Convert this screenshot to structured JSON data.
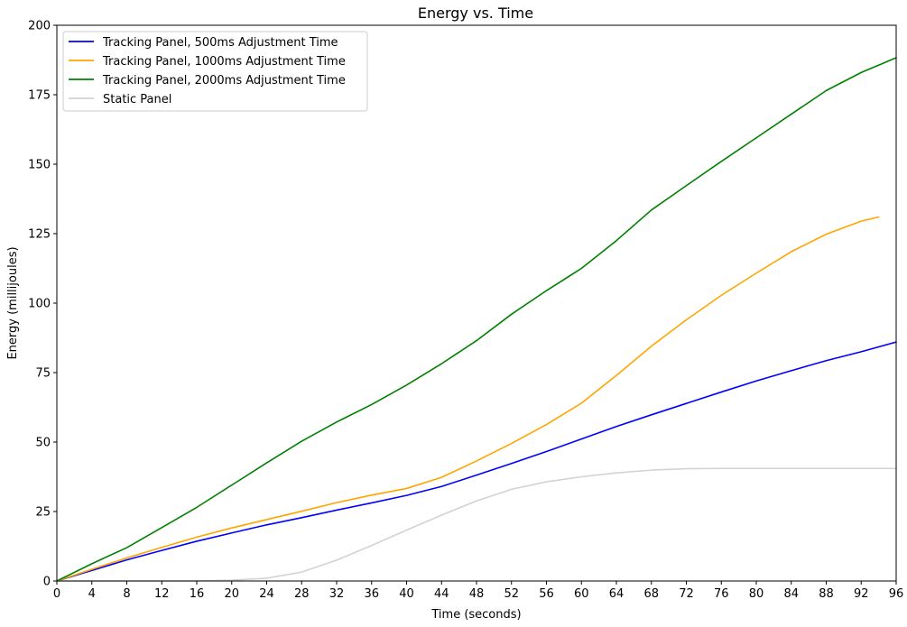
{
  "chart_data": {
    "type": "line",
    "title": "Energy vs. Time",
    "xlabel": "Time (seconds)",
    "ylabel": "Energy (millijoules)",
    "xlim": [
      0,
      96
    ],
    "ylim": [
      0,
      200
    ],
    "xticks": [
      0,
      4,
      8,
      12,
      16,
      20,
      24,
      28,
      32,
      36,
      40,
      44,
      48,
      52,
      56,
      60,
      64,
      68,
      72,
      76,
      80,
      84,
      88,
      92,
      96
    ],
    "yticks": [
      0,
      25,
      50,
      75,
      100,
      125,
      150,
      175,
      200
    ],
    "grid": false,
    "legend_position": "top-left",
    "series": [
      {
        "name": "Tracking Panel, 500ms Adjustment Time",
        "color": "#0000ff",
        "x": [
          0,
          4,
          8,
          12,
          16,
          20,
          24,
          28,
          32,
          36,
          40,
          44,
          48,
          52,
          56,
          60,
          64,
          68,
          72,
          76,
          80,
          84,
          88,
          92,
          96
        ],
        "y": [
          0,
          3.8,
          7.6,
          11,
          14.3,
          17.3,
          20.2,
          22.8,
          25.5,
          28.1,
          30.8,
          34,
          38.1,
          42.3,
          46.6,
          51.1,
          55.6,
          59.8,
          63.9,
          68,
          72,
          75.7,
          79.3,
          82.5,
          86
        ]
      },
      {
        "name": "Tracking Panel, 1000ms Adjustment Time",
        "color": "#ffa500",
        "x": [
          0,
          4,
          8,
          12,
          16,
          20,
          24,
          28,
          32,
          36,
          40,
          44,
          48,
          52,
          56,
          60,
          64,
          68,
          72,
          76,
          80,
          84,
          88,
          92,
          94
        ],
        "y": [
          0,
          4.2,
          8.3,
          12.1,
          15.8,
          19.1,
          22.1,
          25.1,
          28.2,
          30.9,
          33.3,
          37.3,
          43.2,
          49.5,
          56.3,
          64,
          74,
          84.5,
          94,
          102.8,
          110.8,
          118.5,
          124.8,
          129.5,
          131
        ]
      },
      {
        "name": "Tracking Panel, 2000ms Adjustment Time",
        "color": "#008000",
        "x": [
          0,
          4,
          8,
          12,
          16,
          20,
          24,
          28,
          32,
          36,
          40,
          44,
          48,
          52,
          56,
          60,
          64,
          68,
          72,
          76,
          80,
          84,
          88,
          92,
          96
        ],
        "y": [
          0,
          6.2,
          12,
          19.2,
          26.5,
          34.5,
          42.5,
          50.3,
          57.2,
          63.5,
          70.5,
          78.2,
          86.5,
          96,
          104.5,
          112.5,
          122.5,
          133.5,
          142.3,
          151,
          159.5,
          168,
          176.5,
          183,
          188.3
        ]
      },
      {
        "name": "Static Panel",
        "color": "#d3d3d3",
        "x": [
          0,
          4,
          8,
          12,
          16,
          20,
          24,
          28,
          32,
          36,
          40,
          44,
          48,
          52,
          56,
          60,
          64,
          68,
          72,
          76,
          80,
          84,
          88,
          92,
          96
        ],
        "y": [
          0,
          0,
          0,
          0,
          0,
          0.3,
          1,
          3.2,
          7.5,
          12.8,
          18.3,
          23.7,
          28.8,
          33,
          35.7,
          37.5,
          38.9,
          39.9,
          40.4,
          40.5,
          40.5,
          40.5,
          40.5,
          40.5,
          40.5
        ]
      }
    ]
  }
}
